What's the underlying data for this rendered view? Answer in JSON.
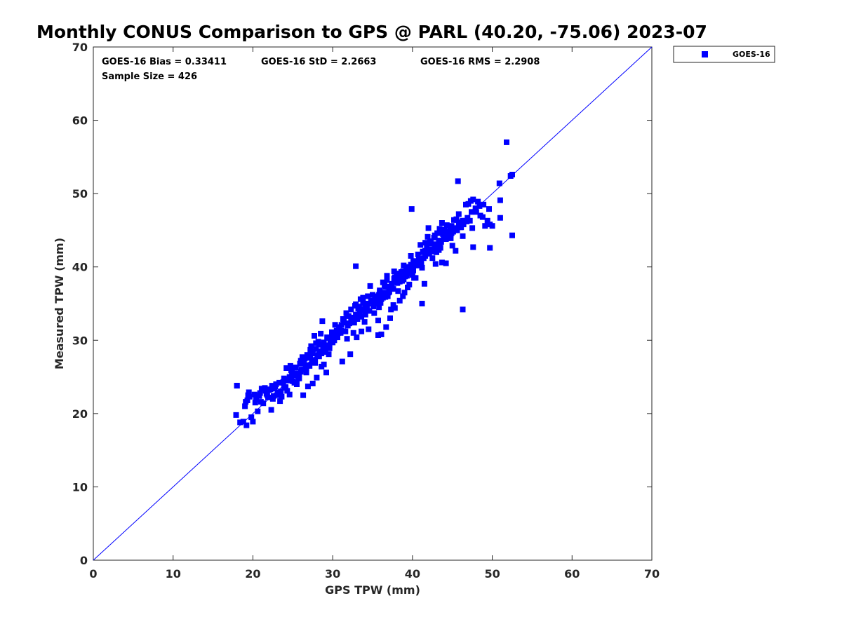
{
  "chart_data": {
    "type": "scatter",
    "title": "Monthly CONUS Comparison to GPS @ PARL (40.20, -75.06) 2023-07",
    "xlabel": "GPS TPW (mm)",
    "ylabel": "Measured TPW (mm)",
    "xlim": [
      0,
      70
    ],
    "ylim": [
      0,
      70
    ],
    "xticks": [
      0,
      10,
      20,
      30,
      40,
      50,
      60,
      70
    ],
    "yticks": [
      0,
      10,
      20,
      30,
      40,
      50,
      60,
      70
    ],
    "grid": false,
    "legend_position": "outside-top-right",
    "stats": {
      "bias": "GOES-16 Bias = 0.33411",
      "std": "GOES-16 StD = 2.2663",
      "rms": "GOES-16 RMS = 2.2908",
      "sample": "Sample Size = 426"
    },
    "reference_line": {
      "x": [
        0,
        70
      ],
      "y": [
        0,
        70
      ],
      "color": "#0000ff"
    },
    "series": [
      {
        "name": "GOES-16",
        "color": "#0000ff",
        "marker": "square",
        "x": [
          17.9,
          18.0,
          18.4,
          18.8,
          19.1,
          19.2,
          19.4,
          19.5,
          19.8,
          20.0,
          20.2,
          20.4,
          20.6,
          20.9,
          21.0,
          21.3,
          21.5,
          21.8,
          22.0,
          22.3,
          22.6,
          22.9,
          23.1,
          23.4,
          23.6,
          23.9,
          24.1,
          24.3,
          24.6,
          24.8,
          25.1,
          25.3,
          25.5,
          25.8,
          26.0,
          26.2,
          26.5,
          26.7,
          27.0,
          27.2,
          27.5,
          27.7,
          27.9,
          28.2,
          28.5,
          28.7,
          29.0,
          29.3,
          29.6,
          29.9,
          30.2,
          30.5,
          30.8,
          31.1,
          31.4,
          31.7,
          32.0,
          32.3,
          32.6,
          32.9,
          33.2,
          33.5,
          33.8,
          34.1,
          34.4,
          34.7,
          35.0,
          35.3,
          35.6,
          35.9,
          36.2,
          36.5,
          36.8,
          37.1,
          37.4,
          37.7,
          38.0,
          38.3,
          38.6,
          38.9,
          39.2,
          39.5,
          39.8,
          40.1,
          40.4,
          40.7,
          41.0,
          41.3,
          41.6,
          41.9,
          42.2,
          42.5,
          42.8,
          43.1,
          43.4,
          43.7,
          44.0,
          44.3,
          44.6,
          44.9,
          45.2,
          45.5,
          45.8,
          46.1,
          46.4,
          46.7,
          47.0,
          47.3,
          47.6,
          47.9,
          48.2,
          48.5,
          48.8,
          49.1,
          49.4,
          49.7,
          50.0,
          50.9,
          51.8,
          52.3,
          52.5,
          19.0,
          19.6,
          20.3,
          21.1,
          21.7,
          22.2,
          22.8,
          23.3,
          23.9,
          24.4,
          24.9,
          25.4,
          25.9,
          26.4,
          26.9,
          27.4,
          27.9,
          28.4,
          28.9,
          29.4,
          29.9,
          30.4,
          30.9,
          31.4,
          31.9,
          32.4,
          32.9,
          33.4,
          33.9,
          34.4,
          34.9,
          35.4,
          35.9,
          36.4,
          36.9,
          37.4,
          37.9,
          38.4,
          38.9,
          39.4,
          39.9,
          40.4,
          40.9,
          41.4,
          41.9,
          42.4,
          42.9,
          43.4,
          43.9,
          44.4,
          44.9,
          45.4,
          45.9,
          46.4,
          46.9,
          47.4,
          47.9,
          48.4,
          48.9,
          22.5,
          23.0,
          24.5,
          25.0,
          25.6,
          26.1,
          26.6,
          27.1,
          27.6,
          28.1,
          28.6,
          29.1,
          29.6,
          30.1,
          30.6,
          31.1,
          31.6,
          32.1,
          32.6,
          33.1,
          33.6,
          34.1,
          34.6,
          35.1,
          35.6,
          36.1,
          36.6,
          37.1,
          37.6,
          38.1,
          38.6,
          39.1,
          39.6,
          40.1,
          40.6,
          41.1,
          41.6,
          42.1,
          42.6,
          43.1,
          43.6,
          44.1,
          44.6,
          45.1,
          45.6,
          46.1,
          46.6,
          24.2,
          24.7,
          25.2,
          25.7,
          26.2,
          26.8,
          27.3,
          27.8,
          28.3,
          28.8,
          29.3,
          29.8,
          30.3,
          30.8,
          31.3,
          31.8,
          32.3,
          32.8,
          33.3,
          33.8,
          34.3,
          34.8,
          35.3,
          35.8,
          36.3,
          36.8,
          37.3,
          37.8,
          38.3,
          38.8,
          39.3,
          39.8,
          40.3,
          40.8,
          41.3,
          41.8,
          42.3,
          42.8,
          43.3,
          43.8,
          44.3,
          44.8,
          45.3,
          45.8,
          46.3,
          46.8,
          26.3,
          26.9,
          27.5,
          28.0,
          28.6,
          29.2,
          36.1,
          36.7,
          37.2,
          37.8,
          38.4,
          39.0,
          39.6,
          42.0,
          42.7,
          43.3,
          44.0,
          44.7,
          45.4,
          19.3,
          20.8,
          21.6,
          22.4,
          23.2,
          23.8,
          25.2,
          26.0,
          27.2,
          28.9,
          31.2,
          32.2,
          33.0,
          34.5,
          35.7,
          37.3,
          38.8,
          40.2,
          41.5,
          42.9,
          45.0,
          46.3,
          47.5,
          49.6,
          51.0,
          21.9,
          22.7,
          23.5,
          24.0,
          24.8,
          25.5,
          26.7,
          27.0,
          27.8,
          28.4,
          29.5,
          30.0,
          33.6,
          34.0,
          35.2,
          35.8,
          36.3,
          37.0,
          37.6,
          38.2,
          38.7,
          39.4,
          40.0,
          41.2,
          42.5,
          43.5,
          44.2,
          44.8,
          24.6,
          25.8,
          26.4,
          27.4,
          28.2,
          29.7,
          30.7,
          31.8,
          32.7,
          33.4,
          34.2,
          35.5,
          36.0,
          36.6,
          37.1,
          37.7,
          38.4,
          39.1,
          39.8,
          40.5,
          41.6,
          42.2,
          43.0,
          43.7,
          27.6,
          28.3,
          29.0,
          30.3,
          31.0,
          32.5,
          33.7,
          35.0,
          36.9,
          38.1,
          38.6,
          39.3,
          40.0,
          41.0,
          42.1,
          43.2,
          44.3,
          45.5,
          46.0,
          47.2,
          48.0
        ],
        "y": [
          19.8,
          23.8,
          18.8,
          18.9,
          21.6,
          18.4,
          22.5,
          22.9,
          19.5,
          18.9,
          22.6,
          21.9,
          20.3,
          22.8,
          21.6,
          21.4,
          23.5,
          22.5,
          23.2,
          20.5,
          22.4,
          24.0,
          22.9,
          21.7,
          22.3,
          23.5,
          23.6,
          23.1,
          22.6,
          25.9,
          25.2,
          26.3,
          24.0,
          24.8,
          27.2,
          26.9,
          27.5,
          25.6,
          26.6,
          28.7,
          28.2,
          30.6,
          29.6,
          29.8,
          30.9,
          32.6,
          28.6,
          29.3,
          28.9,
          30.8,
          30.0,
          31.3,
          31.8,
          32.1,
          32.9,
          33.7,
          33.3,
          34.2,
          31.0,
          34.9,
          34.3,
          35.6,
          35.8,
          34.4,
          36.0,
          37.4,
          36.2,
          35.6,
          35.2,
          36.8,
          36.4,
          37.5,
          38.8,
          37.2,
          37.6,
          39.4,
          38.9,
          38.0,
          39.3,
          40.2,
          40.0,
          39.2,
          41.5,
          40.8,
          38.5,
          41.7,
          43.0,
          42.1,
          43.3,
          44.1,
          43.5,
          42.1,
          44.3,
          44.6,
          45.2,
          46.0,
          44.8,
          45.7,
          44.8,
          45.6,
          46.4,
          46.5,
          47.2,
          46.1,
          45.8,
          48.5,
          48.6,
          49.0,
          49.2,
          47.6,
          48.9,
          47.0,
          46.8,
          45.6,
          46.3,
          45.8,
          45.6,
          51.4,
          57.0,
          52.4,
          52.6,
          21.0,
          22.3,
          21.5,
          23.4,
          22.7,
          23.3,
          23.7,
          24.2,
          24.8,
          24.5,
          25.7,
          26.3,
          26.8,
          27.0,
          27.6,
          28.4,
          28.8,
          29.4,
          29.7,
          30.3,
          31.1,
          30.9,
          31.7,
          32.4,
          32.0,
          32.7,
          33.5,
          33.9,
          34.2,
          35.0,
          35.4,
          36.0,
          36.6,
          36.5,
          37.3,
          37.7,
          38.1,
          38.6,
          38.3,
          39.5,
          40.3,
          40.5,
          40.8,
          41.2,
          41.8,
          42.4,
          42.5,
          43.0,
          43.8,
          43.9,
          44.6,
          45.0,
          45.6,
          46.2,
          46.7,
          47.5,
          48.0,
          48.3,
          48.5,
          22.0,
          22.5,
          24.6,
          24.4,
          25.5,
          26.0,
          26.3,
          26.5,
          27.3,
          27.9,
          28.2,
          28.4,
          29.3,
          30.2,
          30.4,
          31.3,
          31.2,
          32.3,
          32.5,
          32.9,
          33.2,
          33.5,
          34.0,
          34.6,
          35.3,
          35.6,
          35.9,
          36.6,
          37.0,
          37.8,
          38.3,
          38.7,
          39.2,
          39.5,
          40.2,
          40.5,
          41.5,
          41.9,
          42.4,
          42.8,
          43.4,
          44.0,
          44.5,
          44.8,
          45.0,
          45.4,
          46.3,
          26.2,
          26.5,
          25.5,
          24.8,
          27.7,
          28.0,
          29.2,
          27.3,
          29.4,
          28.7,
          30.4,
          30.1,
          32.1,
          31.5,
          32.9,
          33.3,
          32.7,
          34.7,
          34.6,
          35.1,
          34.7,
          35.4,
          35.0,
          36.2,
          37.9,
          38.2,
          37.0,
          38.6,
          39.1,
          39.4,
          38.8,
          40.3,
          40.2,
          41.1,
          42.0,
          42.6,
          43.4,
          43.1,
          42.3,
          44.5,
          44.3,
          43.9,
          45.3,
          45.8,
          46.3,
          46.2,
          22.5,
          23.7,
          24.1,
          24.9,
          26.4,
          25.6,
          30.8,
          31.8,
          33.0,
          34.4,
          35.4,
          36.5,
          37.6,
          45.3,
          44.0,
          43.6,
          45.1,
          45.0,
          42.2,
          21.8,
          22.4,
          23.1,
          23.8,
          22.8,
          24.3,
          24.2,
          25.7,
          27.7,
          26.7,
          27.1,
          28.1,
          30.4,
          31.5,
          32.7,
          34.2,
          36.0,
          38.5,
          37.7,
          40.4,
          42.9,
          44.2,
          45.3,
          47.9,
          46.7,
          22.2,
          23.4,
          23.0,
          23.6,
          24.6,
          24.2,
          26.2,
          27.8,
          26.9,
          28.5,
          28.1,
          29.7,
          31.2,
          32.5,
          33.7,
          34.5,
          35.8,
          36.5,
          34.8,
          36.7,
          38.1,
          37.2,
          38.9,
          39.9,
          41.2,
          42.6,
          43.8,
          44.4,
          25.0,
          25.4,
          26.0,
          27.2,
          28.0,
          29.7,
          31.0,
          30.2,
          32.4,
          33.4,
          34.6,
          35.2,
          35.1,
          37.3,
          37.0,
          38.4,
          38.0,
          39.0,
          40.0,
          40.2,
          42.2,
          43.2,
          42.0,
          44.7,
          27.0,
          27.8,
          29.0,
          30.5,
          31.0,
          33.1,
          34.3,
          35.3,
          36.0,
          38.1,
          38.3,
          39.1,
          40.0,
          41.0,
          42.0,
          43.0,
          44.8,
          46.4,
          45.4,
          46.3,
          47.5
        ]
      }
    ]
  },
  "outliers": {
    "x": [
      18.0,
      32.9,
      41.2,
      45.7,
      46.3,
      52.5,
      44.2,
      47.6,
      49.7,
      51.0,
      35.7,
      39.9,
      43.7
    ],
    "y": [
      23.8,
      40.1,
      35.0,
      51.7,
      34.2,
      44.3,
      40.5,
      42.7,
      42.6,
      49.1,
      30.7,
      47.9,
      40.6
    ]
  }
}
